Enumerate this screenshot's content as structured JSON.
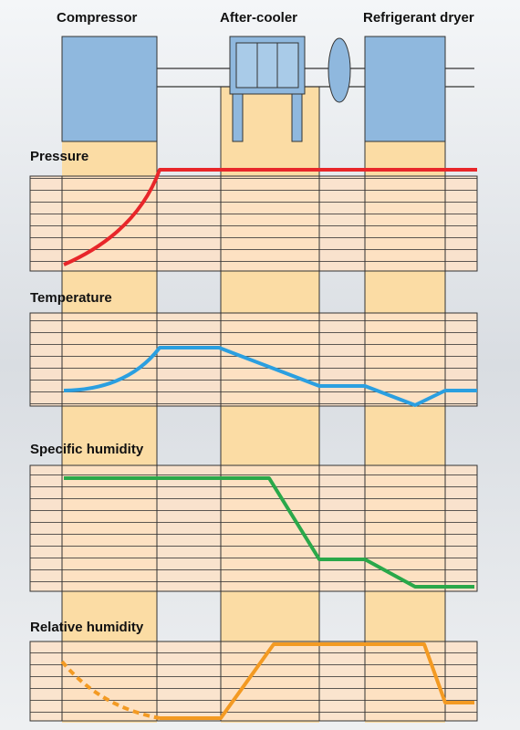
{
  "header": {
    "labels": [
      "Compressor",
      "After-cooler",
      "Refrigerant dryer"
    ]
  },
  "panels": [
    {
      "title": "Pressure"
    },
    {
      "title": "Temperature"
    },
    {
      "title": "Specific humidity"
    },
    {
      "title": "Relative humidity"
    }
  ]
}
